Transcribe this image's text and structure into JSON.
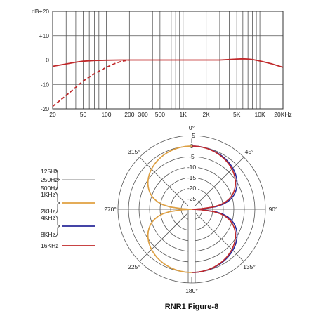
{
  "chart_data": [
    {
      "type": "line",
      "chart": "frequency-response",
      "x_scale": "log",
      "xlim": [
        20,
        20000
      ],
      "ylim": [
        -20,
        20
      ],
      "grid": true,
      "y_unit_label": "dB",
      "y_ticks": [
        {
          "value": 20,
          "label": "+20"
        },
        {
          "value": 10,
          "label": "+10"
        },
        {
          "value": 0,
          "label": "0"
        },
        {
          "value": -10,
          "label": "-10"
        },
        {
          "value": -20,
          "label": "-20"
        }
      ],
      "x_ticks": [
        {
          "value": 20,
          "label": "20"
        },
        {
          "value": 50,
          "label": "50"
        },
        {
          "value": 100,
          "label": "100"
        },
        {
          "value": 200,
          "label": "200"
        },
        {
          "value": 300,
          "label": "300"
        },
        {
          "value": 500,
          "label": "500"
        },
        {
          "value": 1000,
          "label": "1K"
        },
        {
          "value": 2000,
          "label": "2K"
        },
        {
          "value": 5000,
          "label": "5K"
        },
        {
          "value": 10000,
          "label": "10K"
        },
        {
          "value": 20000,
          "label": "20KHz"
        }
      ],
      "series": [
        {
          "style": "solid",
          "color": "#c0282a",
          "points": [
            [
              20,
              -2.6
            ],
            [
              30,
              -1.6
            ],
            [
              40,
              -0.9
            ],
            [
              50,
              -0.5
            ],
            [
              70,
              -0.2
            ],
            [
              100,
              -0.1
            ],
            [
              150,
              0
            ],
            [
              300,
              0
            ],
            [
              1000,
              0
            ],
            [
              2000,
              0
            ],
            [
              3000,
              0
            ],
            [
              4000,
              0.2
            ],
            [
              5000,
              0.4
            ],
            [
              6000,
              0.5
            ],
            [
              7000,
              0.4
            ],
            [
              8000,
              0.2
            ],
            [
              10000,
              -0.4
            ],
            [
              14000,
              -1.5
            ],
            [
              20000,
              -3.0
            ]
          ]
        },
        {
          "style": "dashed",
          "color": "#c0282a",
          "points": [
            [
              20,
              -19
            ],
            [
              30,
              -14.5
            ],
            [
              40,
              -11.2
            ],
            [
              50,
              -8.6
            ],
            [
              70,
              -5.6
            ],
            [
              100,
              -3.0
            ],
            [
              130,
              -1.4
            ],
            [
              160,
              -0.5
            ],
            [
              200,
              0
            ]
          ]
        }
      ]
    },
    {
      "type": "polar",
      "chart": "polar-pattern",
      "title": "RNR1 Figure-8",
      "rlim": [
        -30,
        5
      ],
      "radial_ticks": [
        {
          "value": 5,
          "label": "+5"
        },
        {
          "value": 0,
          "label": "0"
        },
        {
          "value": -5,
          "label": "-5"
        },
        {
          "value": -10,
          "label": "-10"
        },
        {
          "value": -15,
          "label": "-15"
        },
        {
          "value": -20,
          "label": "-20"
        },
        {
          "value": -25,
          "label": "-25"
        }
      ],
      "angle_labels": [
        {
          "deg": 0,
          "label": "0°"
        },
        {
          "deg": 45,
          "label": "45°"
        },
        {
          "deg": 90,
          "label": "90°"
        },
        {
          "deg": 135,
          "label": "135°"
        },
        {
          "deg": 180,
          "label": "180°"
        },
        {
          "deg": 225,
          "label": "225°"
        },
        {
          "deg": 270,
          "label": "270°"
        },
        {
          "deg": 315,
          "label": "315°"
        }
      ],
      "series": [
        {
          "name": "125Hz\n250Hz\n500Hz",
          "color": "#b8b8b8",
          "side": "left",
          "offset": 0
        },
        {
          "name": "1KHz\n\n2KHz",
          "color": "#e0a040",
          "side": "left",
          "offset": 0
        },
        {
          "name": "4KHz\n\n8KHz",
          "color": "#2a2a9a",
          "side": "right",
          "offset": 1.2
        },
        {
          "name": "16KHz",
          "color": "#c0282a",
          "side": "right",
          "offset": 0
        }
      ]
    }
  ]
}
